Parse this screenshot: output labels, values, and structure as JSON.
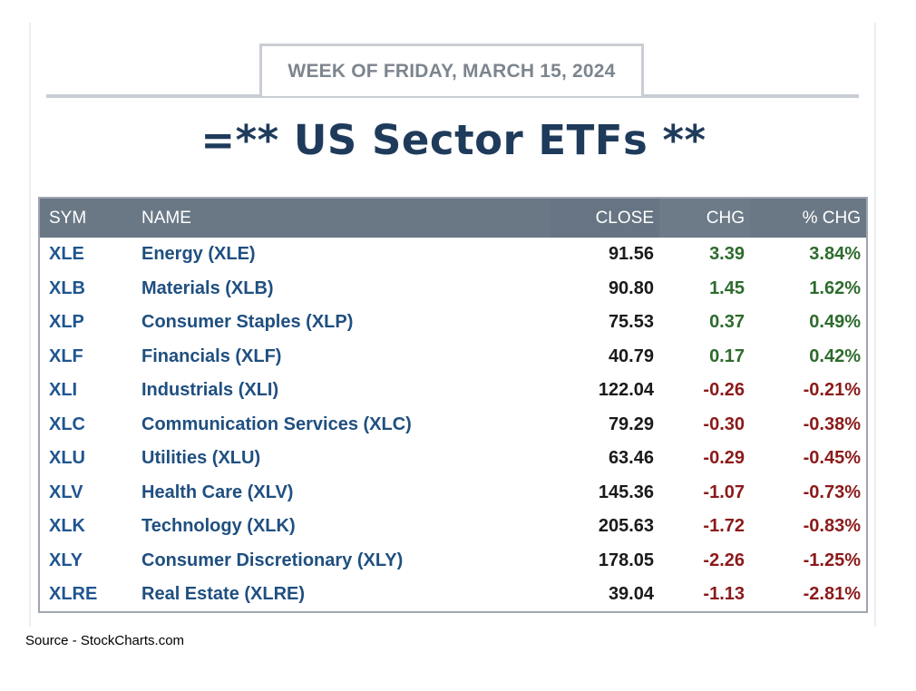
{
  "header": {
    "week_label": "WEEK OF FRIDAY, MARCH 15, 2024",
    "title": "=** US Sector ETFs **"
  },
  "chart_data": {
    "type": "table",
    "columns": [
      "SYM",
      "NAME",
      "CLOSE",
      "CHG",
      "% CHG"
    ],
    "rows": [
      {
        "sym": "XLE",
        "name": "Energy (XLE)",
        "close": "91.56",
        "chg": "3.39",
        "pct": "3.84%",
        "dir": "up"
      },
      {
        "sym": "XLB",
        "name": "Materials (XLB)",
        "close": "90.80",
        "chg": "1.45",
        "pct": "1.62%",
        "dir": "up"
      },
      {
        "sym": "XLP",
        "name": "Consumer Staples (XLP)",
        "close": "75.53",
        "chg": "0.37",
        "pct": "0.49%",
        "dir": "up"
      },
      {
        "sym": "XLF",
        "name": "Financials (XLF)",
        "close": "40.79",
        "chg": "0.17",
        "pct": "0.42%",
        "dir": "up"
      },
      {
        "sym": "XLI",
        "name": "Industrials (XLI)",
        "close": "122.04",
        "chg": "-0.26",
        "pct": "-0.21%",
        "dir": "down"
      },
      {
        "sym": "XLC",
        "name": "Communication Services (XLC)",
        "close": "79.29",
        "chg": "-0.30",
        "pct": "-0.38%",
        "dir": "down"
      },
      {
        "sym": "XLU",
        "name": "Utilities (XLU)",
        "close": "63.46",
        "chg": "-0.29",
        "pct": "-0.45%",
        "dir": "down"
      },
      {
        "sym": "XLV",
        "name": "Health Care (XLV)",
        "close": "145.36",
        "chg": "-1.07",
        "pct": "-0.73%",
        "dir": "down"
      },
      {
        "sym": "XLK",
        "name": "Technology (XLK)",
        "close": "205.63",
        "chg": "-1.72",
        "pct": "-0.83%",
        "dir": "down"
      },
      {
        "sym": "XLY",
        "name": "Consumer Discretionary (XLY)",
        "close": "178.05",
        "chg": "-2.26",
        "pct": "-1.25%",
        "dir": "down"
      },
      {
        "sym": "XLRE",
        "name": "Real Estate (XLRE)",
        "close": "39.04",
        "chg": "-1.13",
        "pct": "-2.81%",
        "dir": "down"
      }
    ]
  },
  "colors": {
    "positive": "#2d6b2d",
    "negative": "#8b1a1a",
    "header_bg": "#6a7886",
    "title": "#1f3b5b"
  },
  "footer": {
    "source": "Source - StockCharts.com"
  }
}
